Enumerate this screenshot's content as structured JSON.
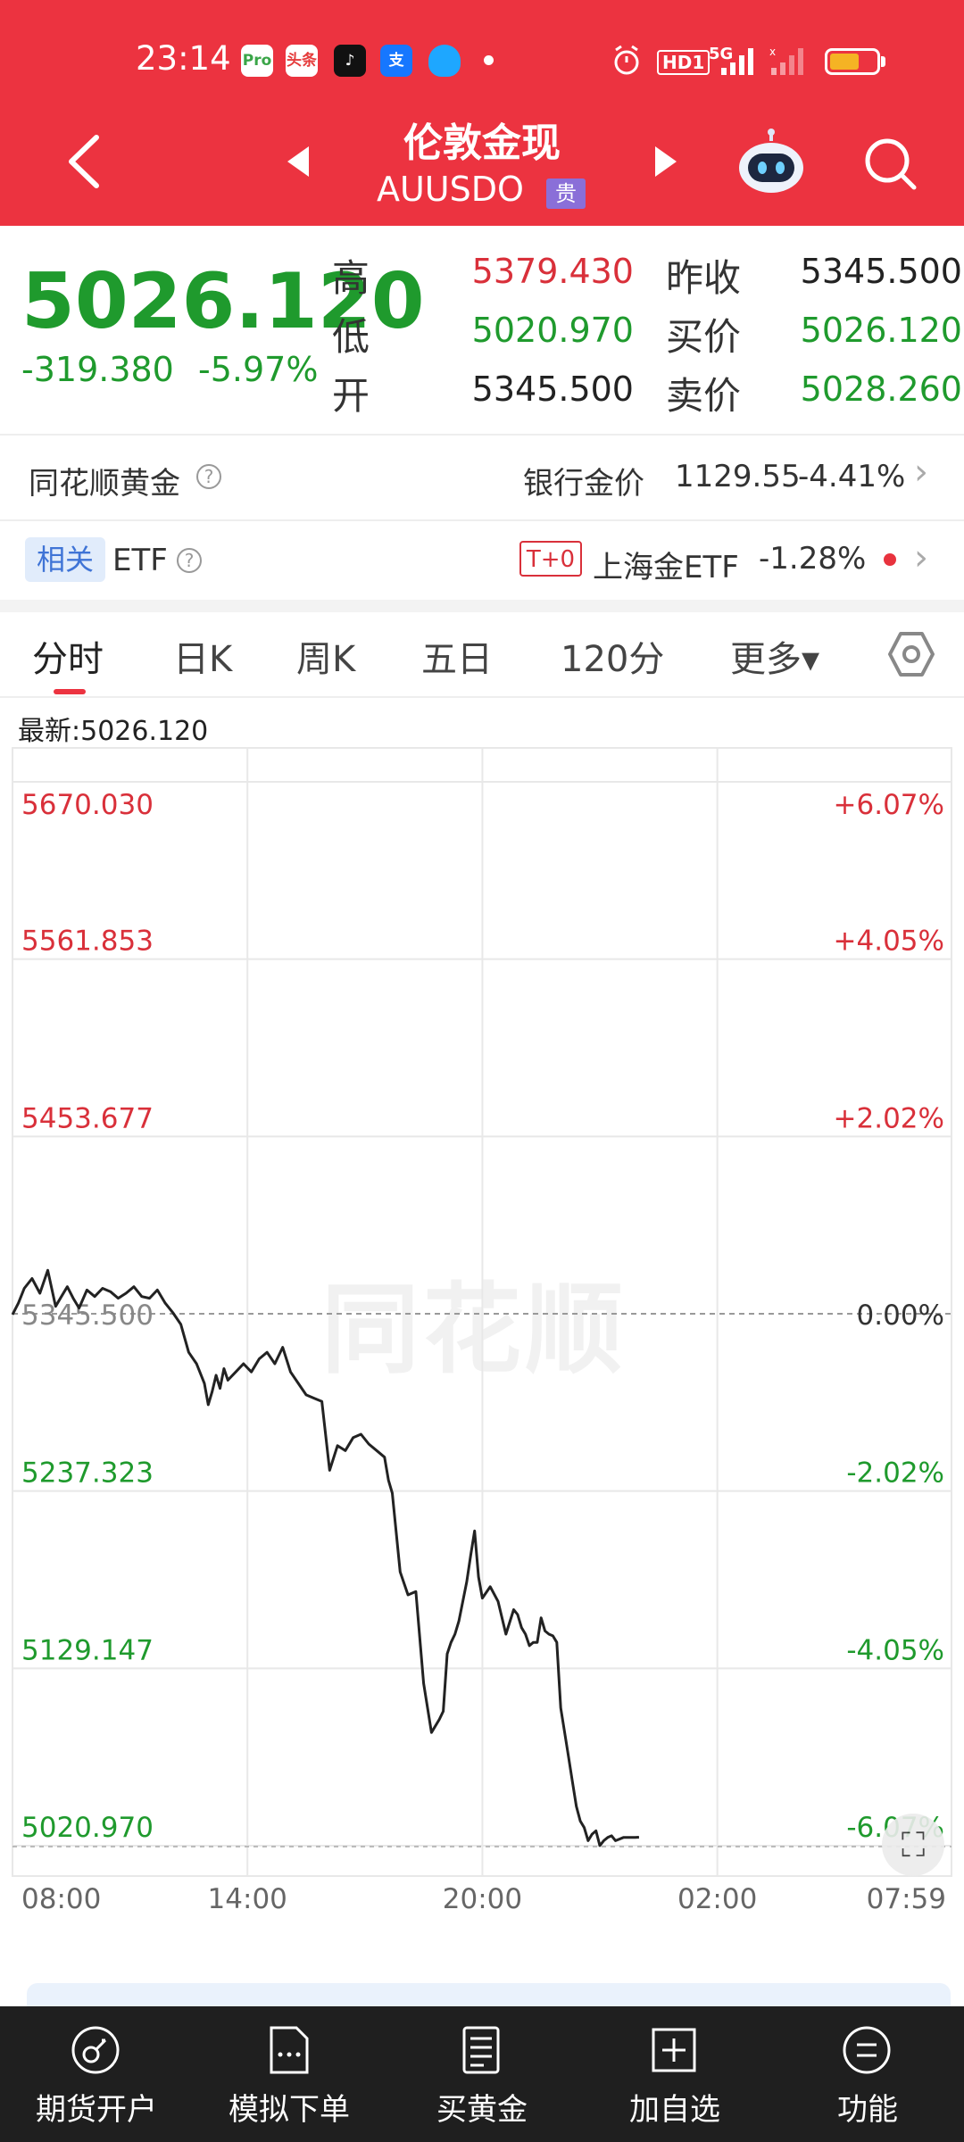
{
  "status_bar": {
    "time": "23:14",
    "apps": [
      {
        "icon": "home-app-icon",
        "text": "Pro",
        "bg": "#ffffff",
        "fg": "#3aa548"
      },
      {
        "icon": "toutiao-app-icon",
        "text": "头条",
        "bg": "#ffffff",
        "fg": "#e53a3a"
      },
      {
        "icon": "tiktok-app-icon",
        "text": "♪",
        "bg": "#111111",
        "fg": "#ffffff"
      },
      {
        "icon": "alipay-app-icon",
        "text": "支",
        "bg": "#1677ff",
        "fg": "#ffffff"
      },
      {
        "icon": "qq-app-icon",
        "text": "",
        "bg": "#1ea7ff",
        "fg": "#ffffff"
      }
    ],
    "hd_label": "HD1",
    "network": "5G"
  },
  "nav": {
    "title": "伦敦金现",
    "subtitle": "AUUSDO",
    "badge": "贵"
  },
  "quote": {
    "price": "5026.120",
    "change": "-319.380",
    "change_pct": "-5.97%",
    "labels": {
      "high": "高",
      "low": "低",
      "open": "开",
      "prev_close": "昨收",
      "bid": "买价",
      "ask": "卖价"
    },
    "high": "5379.430",
    "low": "5020.970",
    "open": "5345.500",
    "prev_close": "5345.500",
    "bid": "5026.120",
    "ask": "5028.260"
  },
  "info_rows": {
    "ths_gold": "同花顺黄金",
    "bank_gold_label": "银行金价",
    "bank_gold_value": "1129.55",
    "bank_gold_change": "-4.41%",
    "related_tag": "相关",
    "etf_label": "ETF",
    "t0_tag": "T+0",
    "sh_gold_etf": "上海金ETF",
    "sh_gold_change": "-1.28%"
  },
  "tabs": [
    {
      "label": "分时",
      "active": true
    },
    {
      "label": "日K"
    },
    {
      "label": "周K"
    },
    {
      "label": "五日"
    },
    {
      "label": "120分"
    },
    {
      "label": "更多▾"
    }
  ],
  "chart_meta": {
    "latest_label": "最新:5026.120",
    "watermark": "同花顺",
    "colors": {
      "up": "#d9303a",
      "down": "#1f9a2d",
      "line": "#222222",
      "grid": "#e8e8e8"
    }
  },
  "chart_data": {
    "type": "line",
    "y_left_ticks": [
      "5670.030",
      "5561.853",
      "5453.677",
      "5345.500",
      "5237.323",
      "5129.147",
      "5020.970"
    ],
    "y_right_ticks": [
      "+6.07%",
      "+4.05%",
      "+2.02%",
      "0.00%",
      "-2.02%",
      "-4.05%",
      "-6.07%"
    ],
    "x_ticks": [
      "08:00",
      "14:00",
      "20:00",
      "02:00",
      "07:59"
    ],
    "ylim": [
      5020.97,
      5670.03
    ],
    "prev_close": 5345.5,
    "x_range_hours": [
      0,
      23.98
    ],
    "series": [
      {
        "x": [
          0,
          0.15,
          0.3,
          0.5,
          0.7,
          0.9,
          1.1,
          1.25,
          1.4,
          1.55,
          1.7,
          1.9,
          2.1,
          2.3,
          2.5,
          2.7,
          2.9,
          3.1,
          3.3,
          3.5,
          3.7,
          3.9,
          4.1,
          4.3,
          4.5,
          4.7,
          4.9,
          5.0,
          5.1,
          5.2,
          5.3,
          5.4,
          5.5,
          5.7,
          5.9,
          6.1,
          6.3,
          6.5,
          6.7,
          6.9,
          7.1,
          7.3,
          7.5,
          7.7,
          7.9,
          8.1,
          8.3,
          8.5,
          8.7,
          8.9,
          9.1,
          9.3,
          9.5,
          9.6,
          9.7,
          9.9,
          10.1,
          10.3,
          10.5,
          10.7,
          10.9,
          11.0,
          11.1,
          11.2,
          11.3,
          11.4,
          11.5,
          11.6,
          11.7,
          11.8,
          11.9,
          12.0,
          12.2,
          12.4,
          12.6,
          12.8,
          12.9,
          13.0,
          13.1,
          13.2,
          13.3,
          13.4,
          13.5,
          13.6,
          13.7,
          13.8,
          13.9,
          14.0,
          14.1,
          14.2,
          14.3,
          14.4,
          14.5,
          14.6,
          14.7,
          14.8,
          14.9,
          15.0,
          15.1,
          15.2,
          15.3,
          15.4,
          15.5,
          15.6,
          15.7,
          15.8,
          15.9,
          16.0
        ],
        "y": [
          5345,
          5352,
          5361,
          5367,
          5358,
          5372,
          5350,
          5356,
          5362,
          5355,
          5349,
          5360,
          5356,
          5361,
          5359,
          5355,
          5358,
          5362,
          5356,
          5355,
          5360,
          5352,
          5346,
          5339,
          5322,
          5315,
          5303,
          5290,
          5298,
          5308,
          5300,
          5312,
          5305,
          5310,
          5315,
          5310,
          5318,
          5322,
          5315,
          5325,
          5310,
          5303,
          5296,
          5294,
          5292,
          5250,
          5265,
          5262,
          5270,
          5272,
          5266,
          5262,
          5258,
          5244,
          5236,
          5188,
          5174,
          5176,
          5120,
          5090,
          5098,
          5103,
          5138,
          5145,
          5150,
          5158,
          5170,
          5182,
          5198,
          5213,
          5185,
          5172,
          5179,
          5170,
          5150,
          5165,
          5162,
          5154,
          5150,
          5143,
          5145,
          5145,
          5160,
          5152,
          5150,
          5149,
          5145,
          5105,
          5090,
          5075,
          5060,
          5045,
          5036,
          5032,
          5024,
          5028,
          5030,
          5021,
          5024,
          5026,
          5027,
          5024,
          5025,
          5026,
          5026,
          5026,
          5026,
          5026.12
        ]
      }
    ]
  },
  "bottom_bar": [
    {
      "icon": "futures-account-icon",
      "label": "期货开户"
    },
    {
      "icon": "simulated-order-icon",
      "label": "模拟下单"
    },
    {
      "icon": "buy-gold-icon",
      "label": "买黄金"
    },
    {
      "icon": "add-watchlist-icon",
      "label": "加自选"
    },
    {
      "icon": "functions-icon",
      "label": "功能"
    }
  ]
}
